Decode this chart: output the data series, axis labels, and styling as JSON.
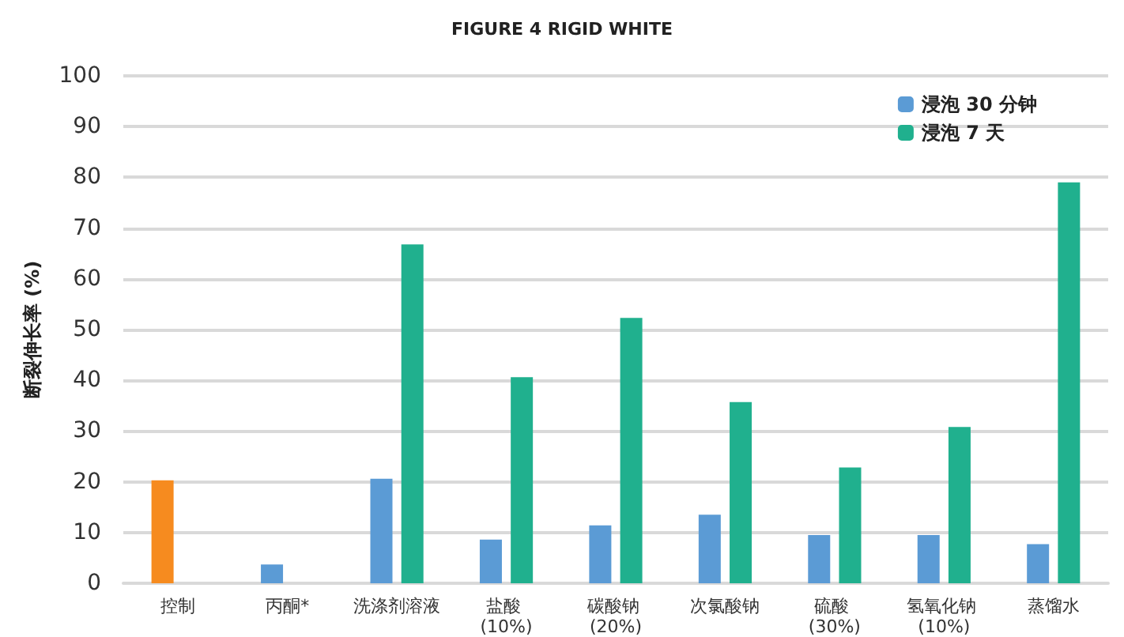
{
  "chart_data": {
    "type": "bar",
    "title": "FIGURE 4 RIGID WHITE",
    "ylabel": "断裂伸长率 (%)",
    "categories": [
      "控制",
      "丙酮*",
      "洗涤剂溶液",
      "盐酸 (10%)",
      "碳酸钠 (20%)",
      "次氯酸钠",
      "硫酸 (30%)",
      "氢氧化钠 (10%)",
      "蒸馏水"
    ],
    "series": [
      {
        "name": "浸泡 30 分钟",
        "color": "#5b9bd5",
        "colors": [
          "#f68b1f",
          "#5b9bd5",
          "#5b9bd5",
          "#5b9bd5",
          "#5b9bd5",
          "#5b9bd5",
          "#5b9bd5",
          "#5b9bd5",
          "#5b9bd5"
        ],
        "values": [
          20.3,
          3.7,
          20.6,
          8.6,
          11.4,
          13.5,
          9.5,
          9.5,
          7.7
        ]
      },
      {
        "name": "浸泡 7 天",
        "color": "#20b08e",
        "values": [
          null,
          null,
          66.8,
          40.6,
          52.3,
          35.7,
          22.8,
          30.8,
          79
        ]
      }
    ],
    "ylim": [
      0,
      100
    ],
    "yticks": [
      0,
      10,
      20,
      30,
      40,
      50,
      60,
      70,
      80,
      90,
      100
    ],
    "grid": "y",
    "legend": "top right"
  }
}
